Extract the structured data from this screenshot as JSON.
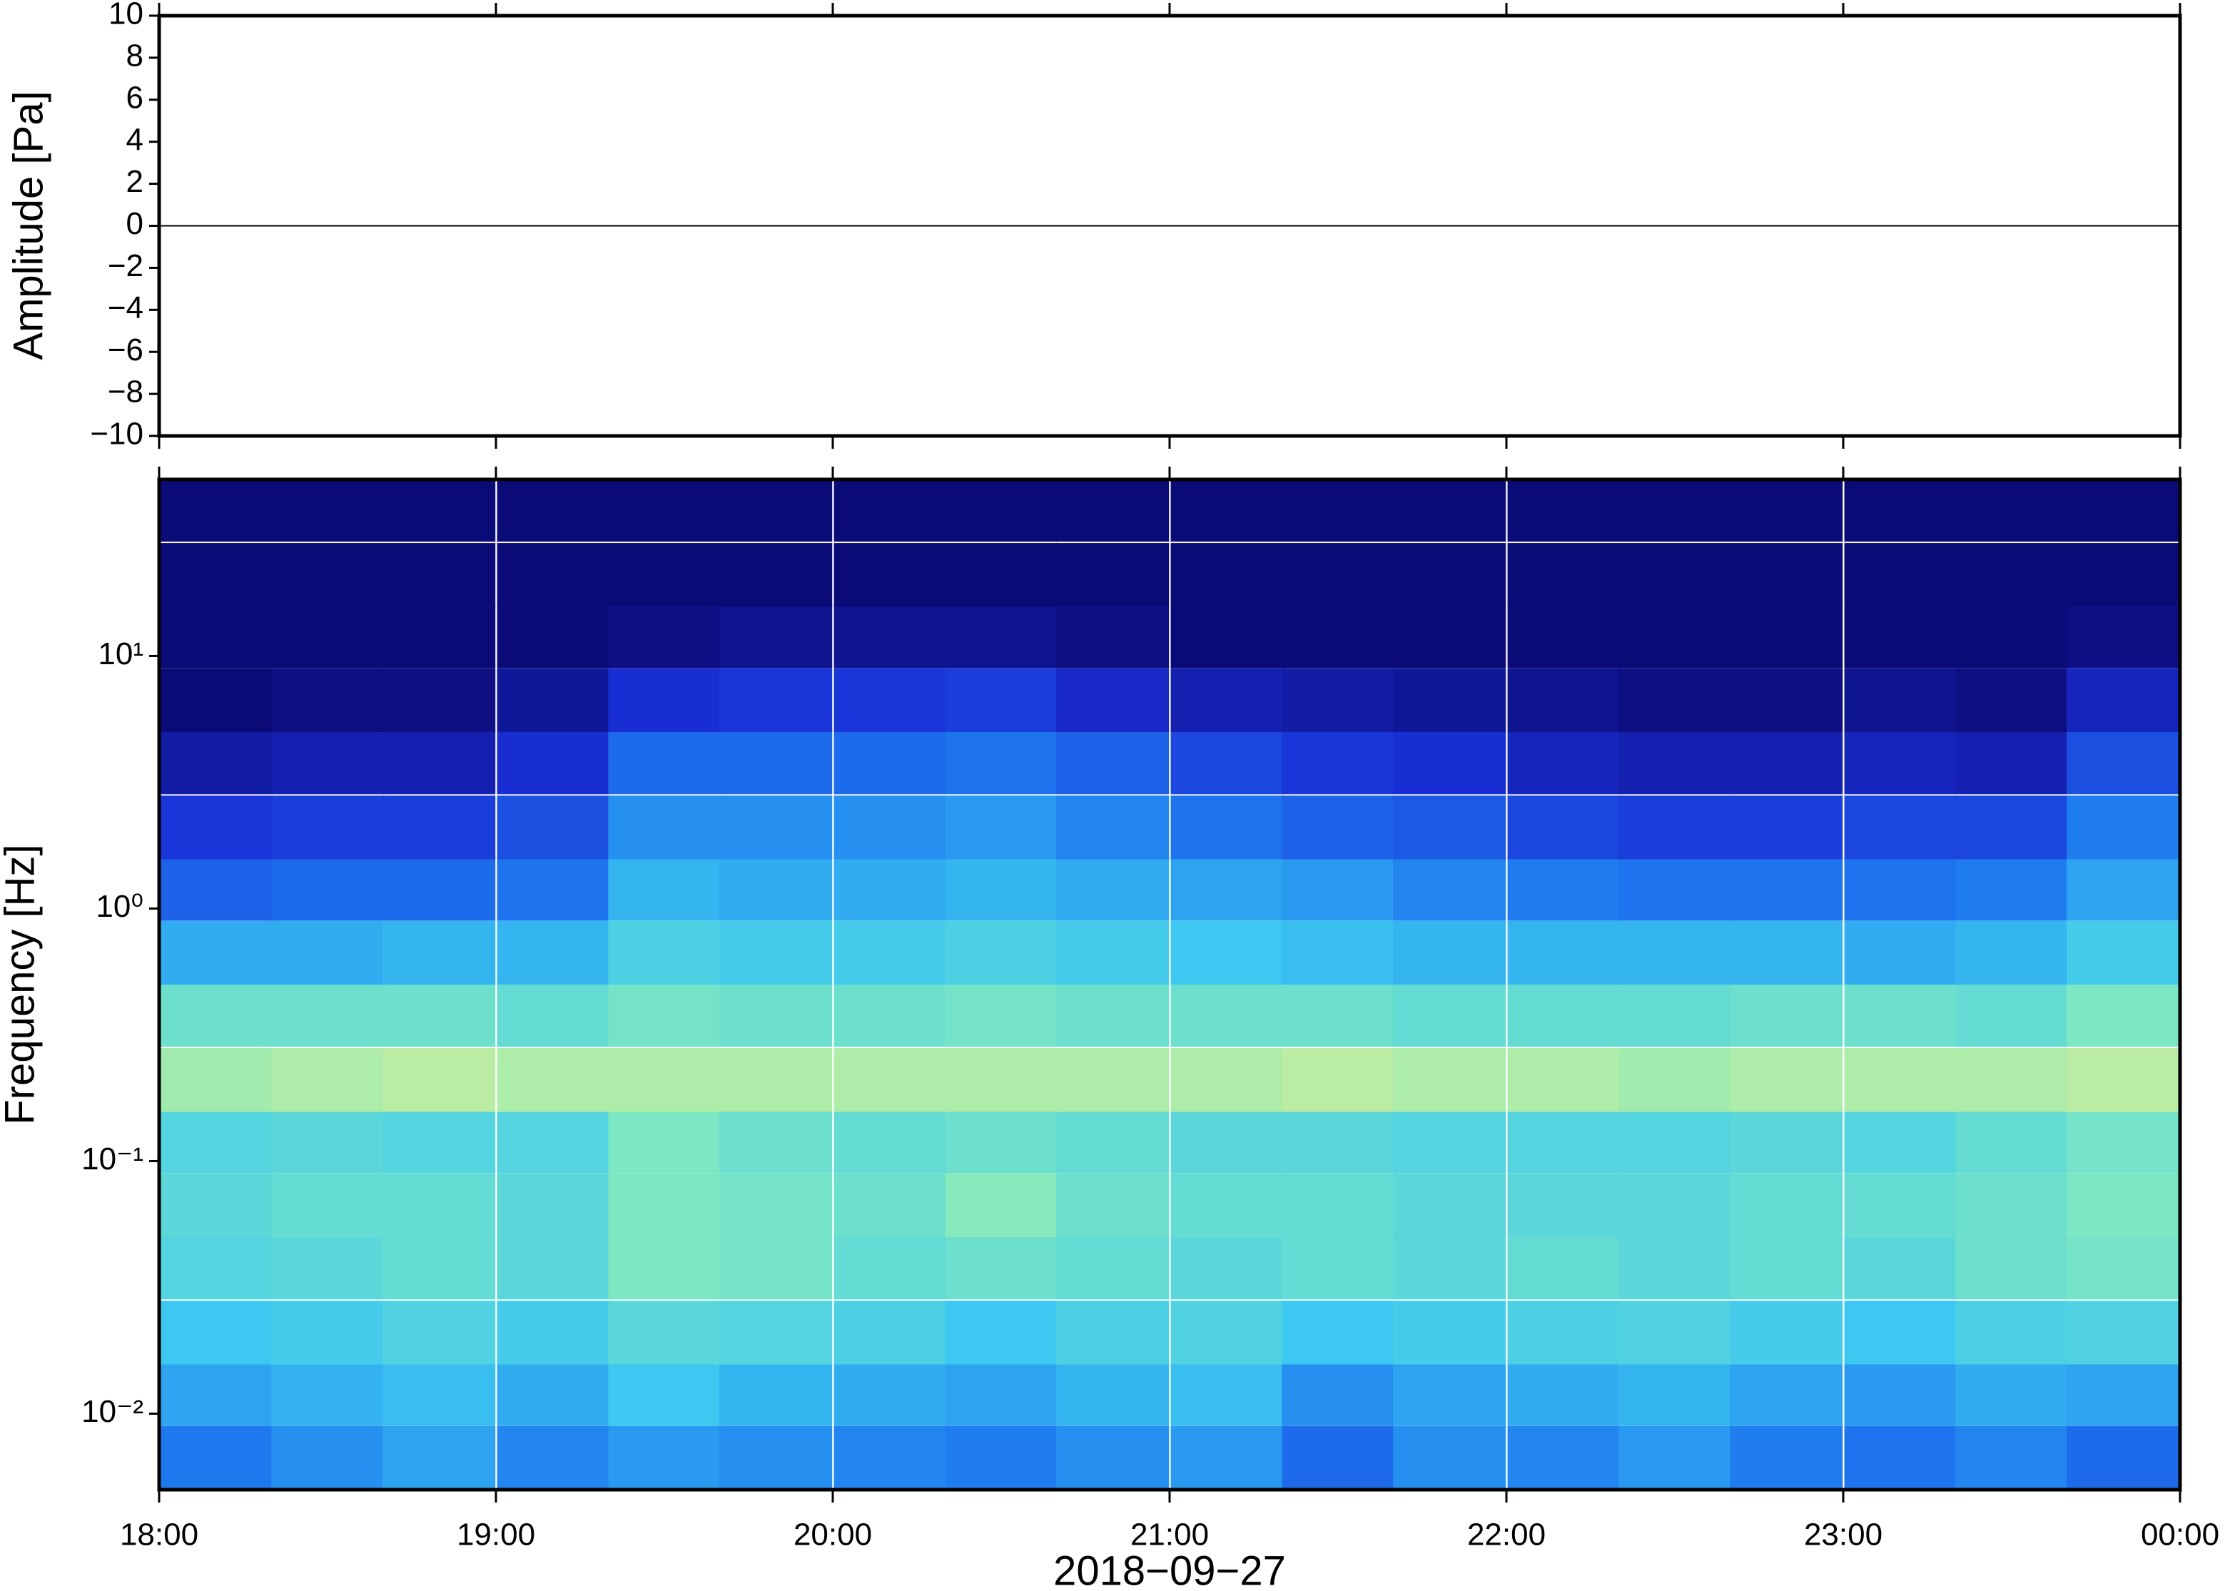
{
  "chart_data": [
    {
      "type": "line",
      "ylabel": "Amplitude [Pa]",
      "xlim": [
        18,
        24
      ],
      "xticks": [
        18,
        19,
        20,
        21,
        22,
        23,
        24
      ],
      "ylim": [
        -10,
        10
      ],
      "yticks": [
        {
          "value": -10,
          "label": "−10"
        },
        {
          "value": -8,
          "label": "−8"
        },
        {
          "value": -6,
          "label": "−6"
        },
        {
          "value": -4,
          "label": "−4"
        },
        {
          "value": -2,
          "label": "−2"
        },
        0,
        2,
        4,
        6,
        8,
        10
      ],
      "x": [
        18,
        18.5,
        19,
        19.5,
        20,
        20.5,
        21,
        21.5,
        22,
        22.5,
        23,
        23.5,
        24
      ],
      "series": [
        {
          "color": "#000000",
          "values": [
            0,
            0,
            0,
            0,
            0,
            0,
            0,
            0,
            0,
            0,
            0,
            0,
            0
          ]
        }
      ]
    },
    {
      "type": "heatmap",
      "ylabel": "Frequency [Hz]",
      "xlabel": "2018−09−27",
      "xlim": [
        18,
        24
      ],
      "xticks": [
        {
          "value": 18,
          "label": "18:00"
        },
        {
          "value": 19,
          "label": "19:00"
        },
        {
          "value": 20,
          "label": "20:00"
        },
        {
          "value": 21,
          "label": "21:00"
        },
        {
          "value": 22,
          "label": "22:00"
        },
        {
          "value": 23,
          "label": "23:00"
        },
        {
          "value": 24,
          "label": "00:00"
        }
      ],
      "ylim": [
        0.005,
        50
      ],
      "log_y": true,
      "yticks": [
        {
          "value": 0.01,
          "label": "10⁻²"
        },
        {
          "value": 0.1,
          "label": "10⁻¹"
        },
        {
          "value": 1,
          "label": "10⁰"
        },
        {
          "value": 10,
          "label": "10¹"
        }
      ],
      "colormap": [
        "#0b0b78",
        "#1a2fd6",
        "#1e7af0",
        "#3cc8f0",
        "#7fe8c0",
        "#e8f08c",
        "#f5b060"
      ],
      "x": [
        18.17,
        18.5,
        18.83,
        19.17,
        19.5,
        19.83,
        20.17,
        20.5,
        20.83,
        21.17,
        21.5,
        21.83,
        22.17,
        22.5,
        22.83,
        23.17,
        23.5,
        23.83
      ],
      "y": [
        0.0067,
        0.012,
        0.021,
        0.038,
        0.067,
        0.12,
        0.21,
        0.38,
        0.67,
        1.2,
        2.1,
        3.8,
        6.7,
        12,
        21,
        38
      ],
      "z": [
        [
          0.33,
          0.38,
          0.42,
          0.36,
          0.4,
          0.38,
          0.36,
          0.34,
          0.38,
          0.4,
          0.3,
          0.38,
          0.36,
          0.4,
          0.34,
          0.32,
          0.36,
          0.3
        ],
        [
          0.42,
          0.45,
          0.48,
          0.44,
          0.5,
          0.46,
          0.44,
          0.42,
          0.46,
          0.48,
          0.38,
          0.42,
          0.44,
          0.46,
          0.42,
          0.4,
          0.44,
          0.42
        ],
        [
          0.5,
          0.52,
          0.55,
          0.52,
          0.58,
          0.56,
          0.54,
          0.5,
          0.54,
          0.55,
          0.5,
          0.52,
          0.54,
          0.55,
          0.52,
          0.5,
          0.54,
          0.55
        ],
        [
          0.56,
          0.58,
          0.6,
          0.58,
          0.66,
          0.64,
          0.6,
          0.62,
          0.6,
          0.58,
          0.6,
          0.58,
          0.6,
          0.58,
          0.6,
          0.58,
          0.62,
          0.64
        ],
        [
          0.58,
          0.6,
          0.6,
          0.58,
          0.66,
          0.64,
          0.62,
          0.68,
          0.62,
          0.6,
          0.6,
          0.58,
          0.58,
          0.58,
          0.6,
          0.6,
          0.62,
          0.66
        ],
        [
          0.56,
          0.58,
          0.56,
          0.56,
          0.66,
          0.62,
          0.6,
          0.62,
          0.6,
          0.58,
          0.58,
          0.56,
          0.56,
          0.56,
          0.58,
          0.56,
          0.6,
          0.64
        ],
        [
          0.72,
          0.74,
          0.76,
          0.74,
          0.74,
          0.74,
          0.74,
          0.74,
          0.74,
          0.74,
          0.76,
          0.74,
          0.74,
          0.72,
          0.74,
          0.74,
          0.74,
          0.76
        ],
        [
          0.62,
          0.62,
          0.62,
          0.6,
          0.64,
          0.62,
          0.62,
          0.64,
          0.62,
          0.62,
          0.62,
          0.6,
          0.6,
          0.6,
          0.62,
          0.62,
          0.6,
          0.66
        ],
        [
          0.44,
          0.44,
          0.46,
          0.46,
          0.54,
          0.52,
          0.52,
          0.54,
          0.52,
          0.5,
          0.48,
          0.46,
          0.46,
          0.46,
          0.46,
          0.44,
          0.46,
          0.52
        ],
        [
          0.28,
          0.3,
          0.3,
          0.32,
          0.46,
          0.44,
          0.44,
          0.46,
          0.44,
          0.42,
          0.4,
          0.36,
          0.34,
          0.32,
          0.32,
          0.32,
          0.34,
          0.42
        ],
        [
          0.18,
          0.2,
          0.2,
          0.24,
          0.38,
          0.38,
          0.38,
          0.4,
          0.36,
          0.32,
          0.28,
          0.26,
          0.22,
          0.2,
          0.2,
          0.22,
          0.22,
          0.34
        ],
        [
          0.08,
          0.1,
          0.1,
          0.16,
          0.3,
          0.3,
          0.3,
          0.32,
          0.28,
          0.22,
          0.18,
          0.16,
          0.12,
          0.1,
          0.1,
          0.12,
          0.1,
          0.24
        ],
        [
          0,
          0.02,
          0.02,
          0.06,
          0.16,
          0.18,
          0.18,
          0.2,
          0.14,
          0.1,
          0.08,
          0.06,
          0.04,
          0.02,
          0.02,
          0.04,
          0.02,
          0.12
        ],
        [
          0,
          0,
          0,
          0,
          0.02,
          0.04,
          0.04,
          0.04,
          0.02,
          0,
          0,
          0,
          0,
          0,
          0,
          0,
          0,
          0.02
        ],
        [
          0,
          0,
          0,
          0,
          0,
          0,
          0,
          0,
          0,
          0,
          0,
          0,
          0,
          0,
          0,
          0,
          0,
          0
        ],
        [
          0,
          0,
          0,
          0,
          0,
          0,
          0,
          0,
          0,
          0,
          0,
          0,
          0,
          0,
          0,
          0,
          0,
          0
        ]
      ]
    }
  ]
}
